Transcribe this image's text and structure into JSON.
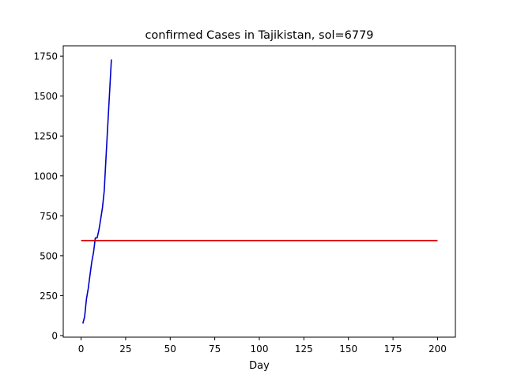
{
  "chart_data": {
    "type": "line",
    "title": "confirmed Cases in Tajikistan, sol=6779",
    "xlabel": "Day",
    "ylabel": "",
    "xlim": [
      -10,
      210
    ],
    "ylim": [
      -10,
      1815
    ],
    "xticks": [
      0,
      25,
      50,
      75,
      100,
      125,
      150,
      175,
      200
    ],
    "yticks": [
      0,
      250,
      500,
      750,
      1000,
      1250,
      1500,
      1750
    ],
    "grid": false,
    "legend": "none",
    "series": [
      {
        "color": "#0000cc",
        "x": [
          1,
          2,
          3,
          4,
          5,
          6,
          7,
          8,
          9,
          10,
          11,
          12,
          13,
          14,
          15,
          16,
          17
        ],
        "y": [
          76,
          118,
          228,
          293,
          379,
          461,
          522,
          612,
          612,
          661,
          729,
          801,
          907,
          1118,
          1322,
          1524,
          1729
        ]
      },
      {
        "color": "#dd0000",
        "x": [
          0,
          200
        ],
        "y": [
          595,
          595
        ]
      }
    ]
  }
}
